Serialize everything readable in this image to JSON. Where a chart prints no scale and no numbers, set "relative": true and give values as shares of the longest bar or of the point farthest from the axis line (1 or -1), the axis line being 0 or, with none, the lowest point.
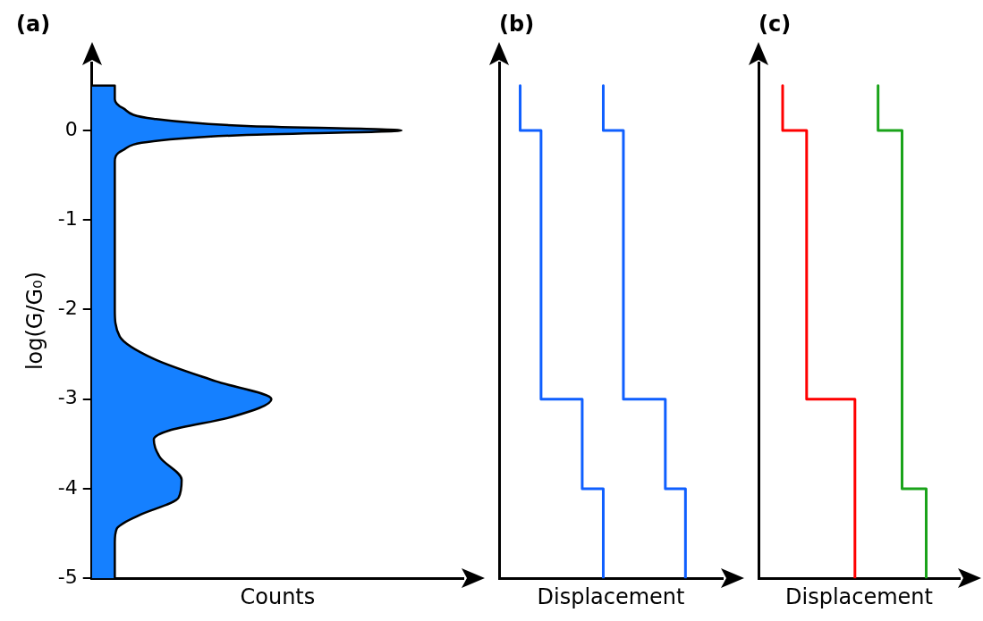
{
  "chart_data": [
    {
      "type": "area",
      "title": "(a)",
      "xlabel": "Counts",
      "ylabel": "log(G/G₀)",
      "orientation": "horizontal",
      "relative": true,
      "ylim": [
        -5,
        0.75
      ],
      "yticks": [
        -5,
        -4,
        -3,
        -2,
        -1,
        0
      ],
      "marker": "none",
      "legend": false,
      "series": [
        {
          "color": "#1580ff",
          "x": [
            0.5,
            0.5,
            0.35,
            0.25,
            0.13,
            0.05,
            0,
            -0.05,
            -0.12,
            -0.22,
            -0.35,
            -2.0,
            -2.3,
            -2.55,
            -2.8,
            -3,
            -3.2,
            -3.35,
            -3.45,
            -3.65,
            -3.9,
            -4.1,
            -4.3,
            -4.45,
            -4.6,
            -5
          ],
          "values": [
            0,
            0.074,
            0.074,
            0.1,
            0.2,
            0.5,
            1,
            0.5,
            0.2,
            0.1,
            0.074,
            0.074,
            0.09,
            0.2,
            0.4,
            0.58,
            0.45,
            0.25,
            0.2,
            0.22,
            0.29,
            0.28,
            0.15,
            0.08,
            0.074,
            0.074
          ]
        }
      ]
    },
    {
      "type": "line",
      "title": "(b)",
      "xlabel": "Displacement",
      "orientation": "horizontal",
      "relative": true,
      "ylim": [
        -5,
        0.75
      ],
      "marker": "none",
      "legend": false,
      "series": [
        {
          "color": "#0f5fff",
          "x": [
            0.5,
            0,
            0,
            -3,
            -3,
            -4,
            -4,
            -5
          ],
          "values": [
            0.113,
            0.113,
            0.225,
            0.225,
            0.446,
            0.446,
            0.559,
            0.559
          ]
        },
        {
          "color": "#0f5fff",
          "x": [
            0.5,
            0,
            0,
            -3,
            -3,
            -4,
            -4,
            -5
          ],
          "values": [
            0.559,
            0.559,
            0.667,
            0.667,
            0.892,
            0.892,
            1,
            1
          ]
        }
      ]
    },
    {
      "type": "line",
      "title": "(c)",
      "xlabel": "Displacement",
      "orientation": "horizontal",
      "relative": true,
      "ylim": [
        -5,
        0.75
      ],
      "marker": "none",
      "legend": false,
      "series": [
        {
          "color": "#ff0000",
          "x": [
            0.5,
            0,
            0,
            -3,
            -3,
            -5
          ],
          "values": [
            0.144,
            0.144,
            0.287,
            0.287,
            0.575,
            0.575
          ]
        },
        {
          "color": "#1aa31a",
          "x": [
            0.5,
            0,
            0,
            -4,
            -4,
            -5
          ],
          "values": [
            0.713,
            0.713,
            0.856,
            0.856,
            1,
            1
          ]
        }
      ]
    }
  ]
}
